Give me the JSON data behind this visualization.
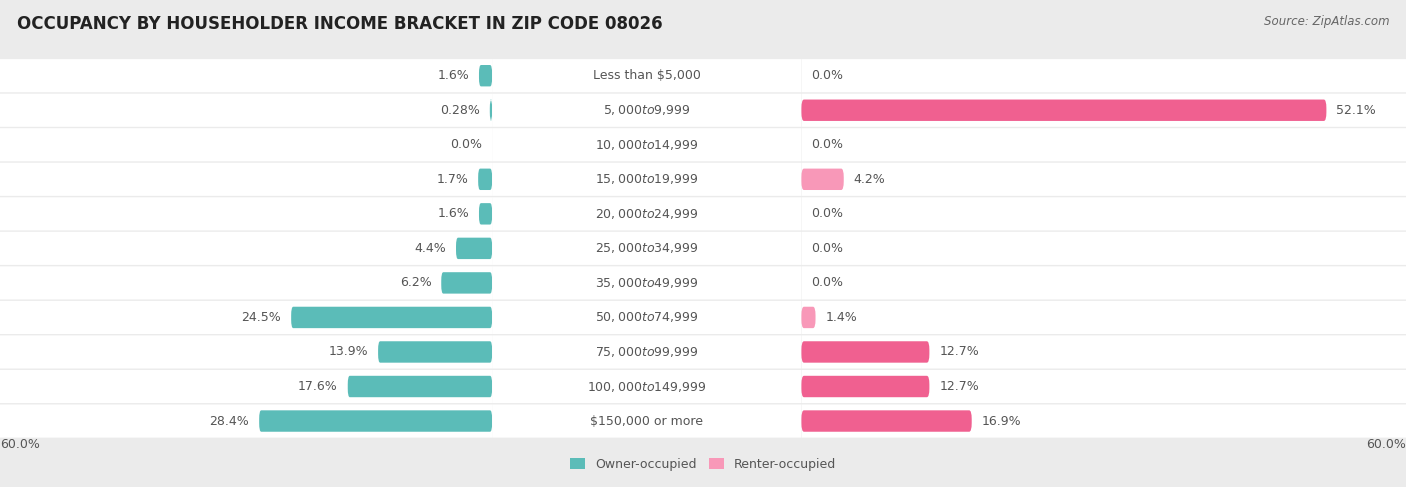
{
  "title": "OCCUPANCY BY HOUSEHOLDER INCOME BRACKET IN ZIP CODE 08026",
  "source": "Source: ZipAtlas.com",
  "categories": [
    "Less than $5,000",
    "$5,000 to $9,999",
    "$10,000 to $14,999",
    "$15,000 to $19,999",
    "$20,000 to $24,999",
    "$25,000 to $34,999",
    "$35,000 to $49,999",
    "$50,000 to $74,999",
    "$75,000 to $99,999",
    "$100,000 to $149,999",
    "$150,000 or more"
  ],
  "owner_values": [
    1.6,
    0.28,
    0.0,
    1.7,
    1.6,
    4.4,
    6.2,
    24.5,
    13.9,
    17.6,
    28.4
  ],
  "renter_values": [
    0.0,
    52.1,
    0.0,
    4.2,
    0.0,
    0.0,
    0.0,
    1.4,
    12.7,
    12.7,
    16.9
  ],
  "owner_color": "#5bbcb8",
  "renter_color": "#f898b8",
  "renter_color_strong": "#f06090",
  "owner_label": "Owner-occupied",
  "renter_label": "Renter-occupied",
  "axis_max": 60.0,
  "background_color": "#ebebeb",
  "row_bg_color": "#ffffff",
  "title_fontsize": 12,
  "source_fontsize": 8.5,
  "bar_height": 0.62,
  "text_color": "#555555",
  "label_fontsize": 9,
  "category_fontsize": 9
}
